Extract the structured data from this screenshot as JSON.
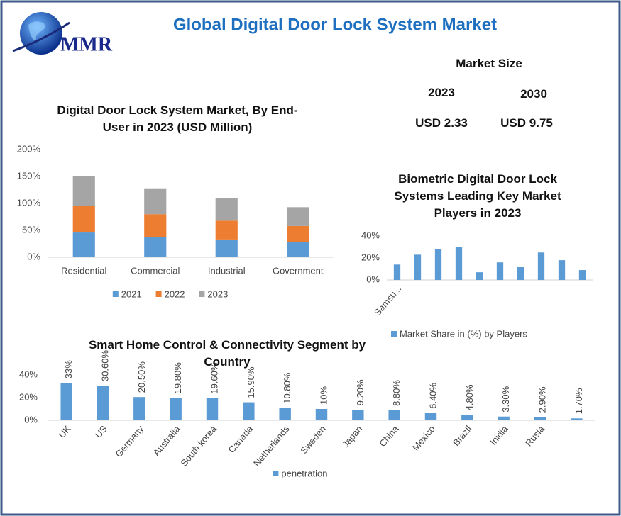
{
  "header": {
    "title": "Global Digital Door Lock System Market",
    "logo": "MMR"
  },
  "market_size": {
    "title": "Market Size",
    "years": [
      "2023",
      "2030"
    ],
    "values": [
      "USD 2.33",
      "USD 9.75"
    ]
  },
  "chart_data": [
    {
      "type": "bar",
      "stacked": true,
      "title": "Digital Door Lock System Market, By End-User in 2023 (USD Million)",
      "categories": [
        "Residential",
        "Commercial",
        "Industrial",
        "Government"
      ],
      "series": [
        {
          "name": "2021",
          "color": "#5b9bd5",
          "values": [
            46,
            38,
            33,
            28
          ]
        },
        {
          "name": "2022",
          "color": "#ed7d31",
          "values": [
            49,
            42,
            35,
            30
          ]
        },
        {
          "name": "2023",
          "color": "#a5a5a5",
          "values": [
            56,
            48,
            42,
            35
          ]
        }
      ],
      "ylim": [
        0,
        200
      ],
      "yticks": [
        {
          "value": 0,
          "label": "0%"
        },
        {
          "value": 50,
          "label": "50%"
        },
        {
          "value": 100,
          "label": "100%"
        },
        {
          "value": 150,
          "label": "150%"
        },
        {
          "value": 200,
          "label": "200%"
        }
      ],
      "grid": false
    },
    {
      "type": "bar",
      "title": "Biometric Digital Door Lock Systems Leading Key Market Players in 2023",
      "categories": [
        "Samsu...",
        null,
        null,
        null,
        null,
        null,
        null,
        null,
        null,
        null
      ],
      "series": [
        {
          "name": "Market Share in (%) by Players",
          "color": "#5b9bd5",
          "values": [
            14,
            23,
            28,
            30,
            7,
            16,
            12,
            25,
            18,
            9
          ]
        }
      ],
      "ylim": [
        0,
        40
      ],
      "yticks": [
        {
          "value": 0,
          "label": "0%"
        },
        {
          "value": 20,
          "label": "20%"
        },
        {
          "value": 40,
          "label": "40%"
        }
      ],
      "grid": false
    },
    {
      "type": "bar",
      "title": "Smart Home Control & Connectivity Segment by Country",
      "categories": [
        "UK",
        "US",
        "Germany",
        "Australia",
        "South korea",
        "Canada",
        "Netherlands",
        "Sweden",
        "Japan",
        "China",
        "Mexico",
        "Brazil",
        "Inidia",
        "Rusia",
        null
      ],
      "series": [
        {
          "name": "penetration",
          "color": "#5b9bd5",
          "values": [
            33,
            30.6,
            20.5,
            19.8,
            19.6,
            15.9,
            10.8,
            10,
            9.2,
            8.8,
            6.4,
            4.8,
            3.3,
            2.9,
            1.7
          ],
          "value_labels": [
            "33%",
            "30.60%",
            "20.50%",
            "19.80%",
            "19.60%",
            "15.90%",
            "10.80%",
            "10%",
            "9.20%",
            "8.80%",
            "6.40%",
            "4.80%",
            "3.30%",
            "2.90%",
            "1.70%"
          ]
        }
      ],
      "ylim": [
        0,
        40
      ],
      "yticks": [
        {
          "value": 0,
          "label": "0%"
        },
        {
          "value": 20,
          "label": "20%"
        },
        {
          "value": 40,
          "label": "40%"
        }
      ],
      "grid": false
    }
  ]
}
